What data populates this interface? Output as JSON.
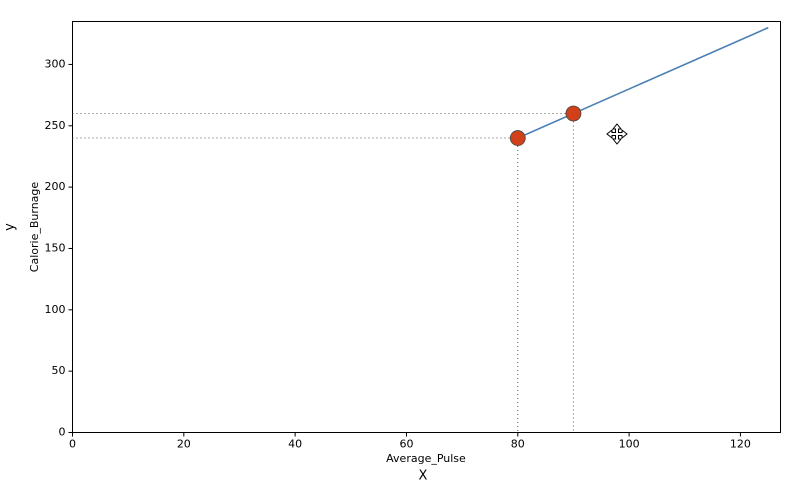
{
  "chart_data": {
    "type": "line",
    "xlabel": "Average_Pulse",
    "ylabel": "Calorie_Burnage",
    "outer_xlabel": "X",
    "outer_ylabel": "y",
    "xlim": [
      0,
      127.2
    ],
    "ylim": [
      0,
      335
    ],
    "xticks": [
      0,
      20,
      40,
      60,
      80,
      100,
      120
    ],
    "yticks": [
      0,
      50,
      100,
      150,
      200,
      250,
      300
    ],
    "series": [
      {
        "name": "line",
        "color": "#4a7fb5",
        "x": [
          80,
          125
        ],
        "values": [
          240,
          330
        ]
      },
      {
        "name": "points",
        "color": "#d2401a",
        "x": [
          80,
          90
        ],
        "values": [
          240,
          260
        ],
        "markers": true,
        "guides": true
      }
    ]
  }
}
